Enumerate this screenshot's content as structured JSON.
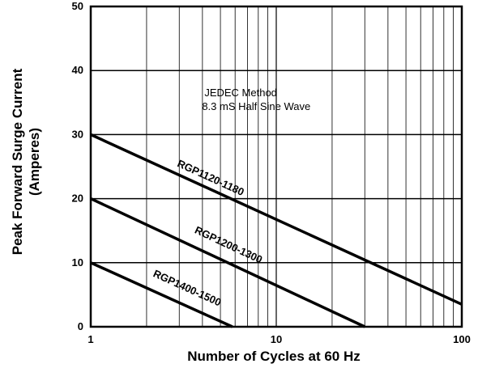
{
  "chart_data": {
    "type": "line",
    "title": "",
    "xlabel": "Number of Cycles at 60 Hz",
    "ylabel_line1": "Peak Forward Surge Current",
    "ylabel_line2": "(Amperes)",
    "xscale": "log",
    "xlim": [
      1,
      100
    ],
    "ylim": [
      0,
      50
    ],
    "grid": true,
    "x_ticks": [
      {
        "value": 1,
        "label": "1"
      },
      {
        "value": 10,
        "label": "10"
      },
      {
        "value": 100,
        "label": "100"
      }
    ],
    "y_ticks": [
      {
        "value": 0,
        "label": "0"
      },
      {
        "value": 10,
        "label": "10"
      },
      {
        "value": 20,
        "label": "20"
      },
      {
        "value": 30,
        "label": "30"
      },
      {
        "value": 40,
        "label": "40"
      },
      {
        "value": 50,
        "label": "50"
      }
    ],
    "annotation_lines": [
      "JEDEC Method",
      "8.3 mS Half Sine Wave"
    ],
    "annotation_anchor": {
      "x": 4.1,
      "y": 36
    },
    "series": [
      {
        "name": "RGP1120-1180",
        "x": [
          1,
          100
        ],
        "y": [
          30,
          3.5
        ],
        "label_at": {
          "x": 2.9,
          "y": 25.1
        }
      },
      {
        "name": "RGP1200-1300",
        "x": [
          1,
          30
        ],
        "y": [
          20,
          0
        ],
        "label_at": {
          "x": 3.6,
          "y": 14.7
        }
      },
      {
        "name": "RGP1400-1500",
        "x": [
          1,
          5.8
        ],
        "y": [
          10,
          0
        ],
        "label_at": {
          "x": 2.15,
          "y": 7.9
        }
      }
    ]
  }
}
